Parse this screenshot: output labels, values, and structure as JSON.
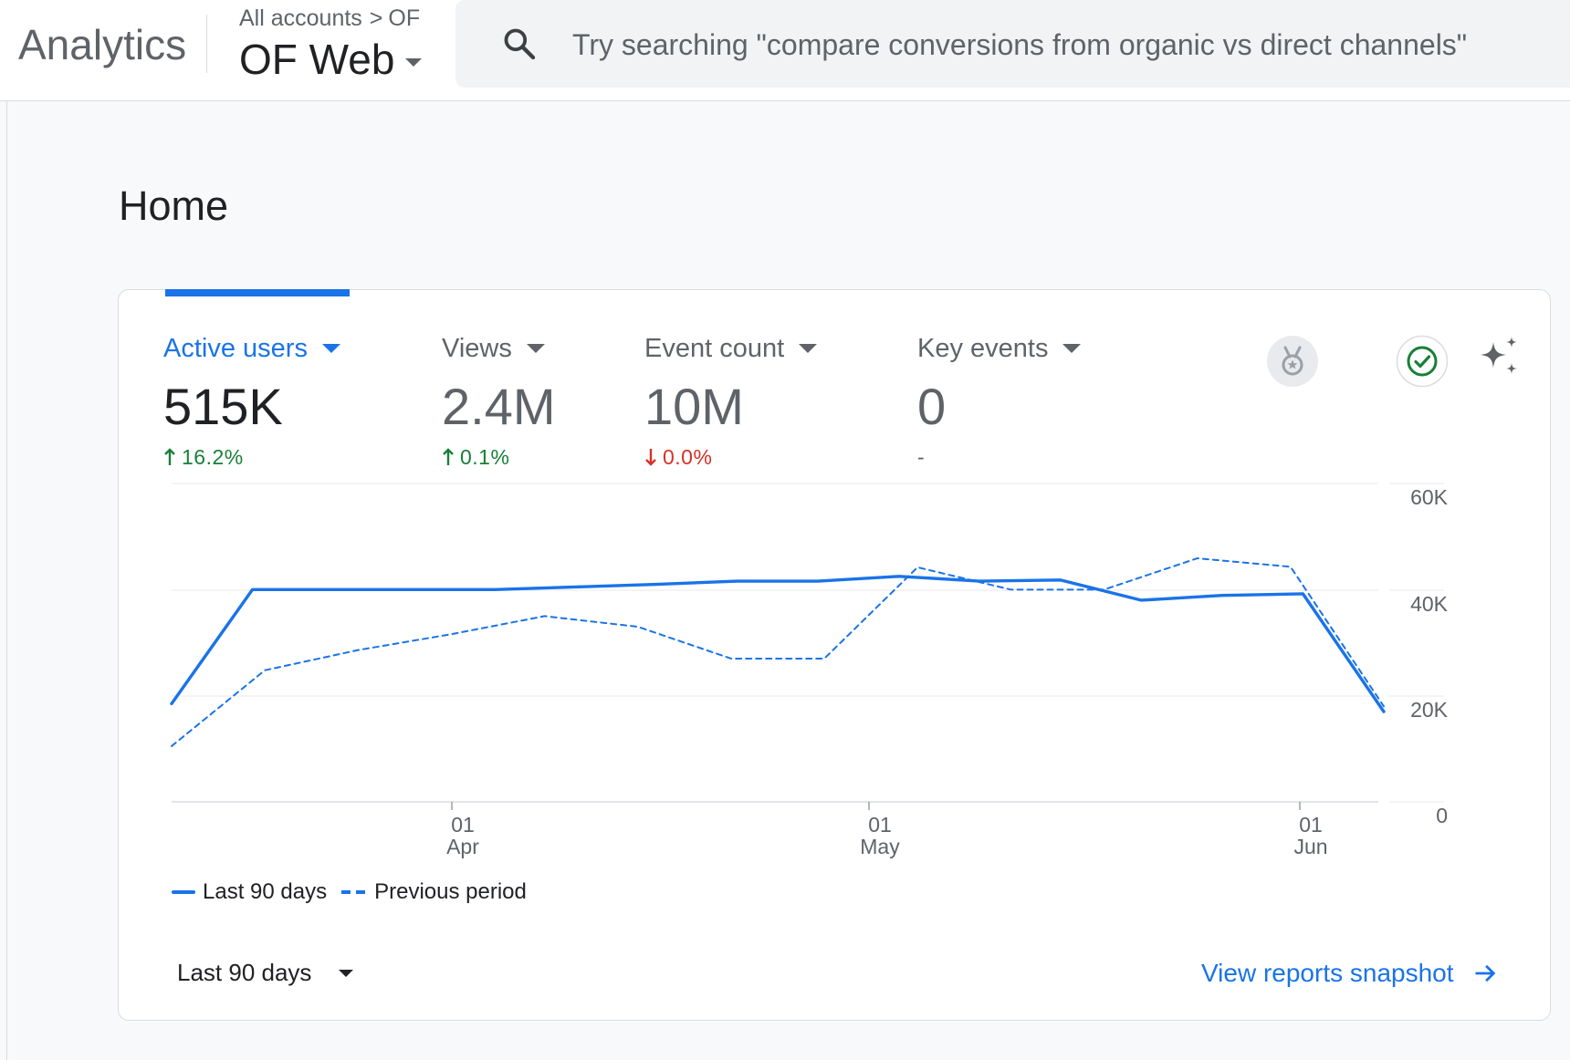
{
  "header": {
    "product": "Analytics",
    "breadcrumb": {
      "root": "All accounts",
      "separator": ">",
      "account": "OF"
    },
    "property": "OF Web"
  },
  "search": {
    "icon": "search-icon",
    "placeholder": "Try searching \"compare conversions from organic vs direct channels\""
  },
  "page": {
    "title": "Home"
  },
  "metrics": [
    {
      "label": "Active users",
      "value": "515K",
      "change": "16.2%",
      "trend": "up",
      "active": true
    },
    {
      "label": "Views",
      "value": "2.4M",
      "change": "0.1%",
      "trend": "up",
      "active": false
    },
    {
      "label": "Event count",
      "value": "10M",
      "change": "0.0%",
      "trend": "down",
      "active": false
    },
    {
      "label": "Key events",
      "value": "0",
      "change": "-",
      "trend": "none",
      "active": false
    }
  ],
  "card_icons": [
    "medal-icon",
    "check-circle-icon",
    "sparkle-icon"
  ],
  "colors": {
    "accent": "#1a73e8",
    "positive": "#188038",
    "negative": "#d93025",
    "check": "#188038"
  },
  "chart_data": {
    "type": "line",
    "x_ticks": [
      {
        "day": "01",
        "month": "Apr"
      },
      {
        "day": "01",
        "month": "May"
      },
      {
        "day": "01",
        "month": "Jun"
      }
    ],
    "y_ticks": [
      "60K",
      "40K",
      "20K",
      "0"
    ],
    "ylim": [
      0,
      60000
    ],
    "grid": true,
    "legend_position": "bottom-left",
    "series": [
      {
        "name": "Last 90 days",
        "style": "solid",
        "values": [
          18500,
          40000,
          40000,
          40000,
          40000,
          40500,
          41000,
          41600,
          41600,
          42500,
          41600,
          41800,
          38000,
          38900,
          39200,
          17000
        ]
      },
      {
        "name": "Previous period",
        "style": "dashed",
        "values": [
          10500,
          24800,
          28600,
          31600,
          35000,
          33000,
          27000,
          27000,
          44200,
          40000,
          40000,
          45900,
          44300,
          18000
        ]
      }
    ]
  },
  "footer": {
    "range_label": "Last 90 days",
    "link_label": "View reports snapshot"
  }
}
